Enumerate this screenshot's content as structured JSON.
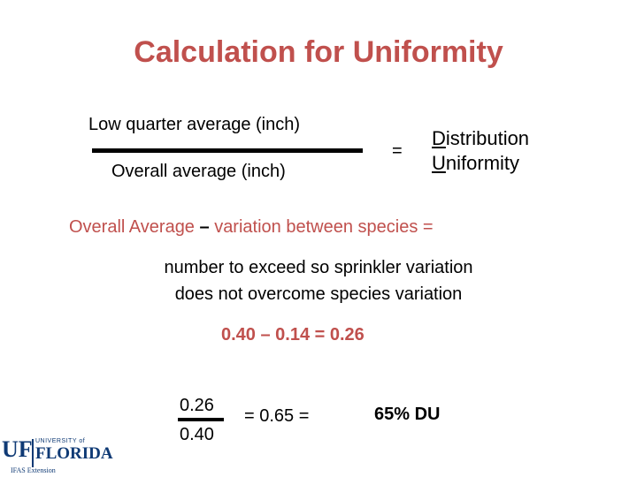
{
  "title": "Calculation for Uniformity",
  "formula": {
    "numerator": "Low quarter average  (inch)",
    "denominator": "Overall average  (inch)",
    "equals": "=",
    "result_line1_first": "D",
    "result_line1_rest": "istribution",
    "result_line2_first": "U",
    "result_line2_rest": "niformity"
  },
  "line1": {
    "part1": "Overall Average",
    "minus": "–",
    "part2": "variation between species  ="
  },
  "line2": {
    "row1": "number to exceed so sprinkler variation",
    "row2": "does not overcome species variation"
  },
  "line3": "0.40  –  0.14  =  0.26",
  "calc": {
    "numerator": "0.26",
    "denominator": "0.40",
    "equals_value": "=  0.65    =",
    "result": "65%  DU"
  },
  "logo": {
    "uf": "UF",
    "university": "UNIVERSITY of",
    "florida": "FLORIDA",
    "ifas": "IFAS Extension"
  }
}
